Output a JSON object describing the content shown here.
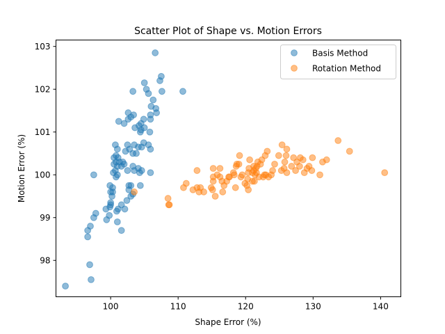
{
  "chart_data": {
    "type": "scatter",
    "title": "Scatter Plot of Shape vs. Motion Errors",
    "xlabel": "Shape Error (%)",
    "ylabel": "Motion Error (%)",
    "xlim": [
      91.9,
      143.0
    ],
    "ylim": [
      97.15,
      103.15
    ],
    "xticks": [
      100,
      110,
      120,
      130,
      140
    ],
    "yticks": [
      98,
      99,
      100,
      101,
      102,
      103
    ],
    "grid": false,
    "legend_position": "top-right",
    "series": [
      {
        "name": "Basis Method",
        "color": "#1f77b4",
        "points": [
          [
            93.3,
            97.4
          ],
          [
            97.1,
            97.55
          ],
          [
            96.9,
            97.9
          ],
          [
            96.6,
            98.55
          ],
          [
            96.6,
            98.7
          ],
          [
            97.0,
            98.8
          ],
          [
            97.5,
            99.0
          ],
          [
            97.8,
            99.1
          ],
          [
            99.4,
            98.95
          ],
          [
            99.3,
            99.2
          ],
          [
            99.9,
            99.25
          ],
          [
            100.0,
            99.3
          ],
          [
            99.8,
            99.05
          ],
          [
            101.6,
            98.7
          ],
          [
            101.0,
            98.9
          ],
          [
            100.9,
            99.15
          ],
          [
            101.1,
            99.2
          ],
          [
            101.6,
            99.3
          ],
          [
            102.1,
            99.2
          ],
          [
            102.4,
            99.4
          ],
          [
            103.0,
            99.5
          ],
          [
            103.3,
            99.55
          ],
          [
            102.7,
            99.65
          ],
          [
            102.7,
            99.75
          ],
          [
            103.0,
            99.75
          ],
          [
            104.4,
            99.75
          ],
          [
            100.3,
            99.6
          ],
          [
            100.3,
            99.7
          ],
          [
            99.9,
            99.75
          ],
          [
            100.0,
            99.6
          ],
          [
            100.0,
            99.35
          ],
          [
            100.2,
            99.5
          ],
          [
            97.5,
            100.0
          ],
          [
            100.8,
            99.95
          ],
          [
            101.0,
            100.0
          ],
          [
            100.4,
            100.05
          ],
          [
            100.7,
            100.1
          ],
          [
            101.0,
            100.2
          ],
          [
            100.5,
            100.25
          ],
          [
            100.8,
            100.3
          ],
          [
            101.6,
            100.2
          ],
          [
            101.3,
            100.3
          ],
          [
            101.8,
            100.3
          ],
          [
            102.0,
            100.25
          ],
          [
            102.5,
            100.1
          ],
          [
            103.5,
            100.1
          ],
          [
            103.3,
            100.2
          ],
          [
            104.1,
            100.15
          ],
          [
            104.3,
            100.05
          ],
          [
            104.6,
            100.1
          ],
          [
            105.9,
            100.05
          ],
          [
            100.5,
            100.4
          ],
          [
            100.8,
            100.45
          ],
          [
            101.1,
            100.4
          ],
          [
            102.2,
            100.55
          ],
          [
            102.8,
            100.6
          ],
          [
            103.3,
            100.5
          ],
          [
            103.8,
            100.5
          ],
          [
            104.1,
            100.65
          ],
          [
            104.6,
            100.65
          ],
          [
            100.7,
            100.7
          ],
          [
            101.0,
            100.6
          ],
          [
            102.5,
            100.7
          ],
          [
            103.5,
            100.7
          ],
          [
            104.9,
            100.75
          ],
          [
            105.6,
            100.7
          ],
          [
            105.9,
            100.6
          ],
          [
            102.0,
            101.2
          ],
          [
            101.2,
            101.25
          ],
          [
            102.6,
            101.3
          ],
          [
            103.0,
            101.35
          ],
          [
            103.6,
            101.1
          ],
          [
            104.2,
            101.15
          ],
          [
            104.5,
            101.2
          ],
          [
            104.4,
            101.0
          ],
          [
            104.5,
            101.05
          ],
          [
            105.0,
            101.1
          ],
          [
            105.8,
            101.0
          ],
          [
            102.6,
            101.45
          ],
          [
            103.4,
            101.4
          ],
          [
            104.9,
            101.3
          ],
          [
            105.9,
            101.3
          ],
          [
            105.9,
            101.4
          ],
          [
            106.0,
            101.6
          ],
          [
            106.7,
            101.55
          ],
          [
            106.8,
            101.45
          ],
          [
            103.3,
            101.95
          ],
          [
            105.0,
            102.15
          ],
          [
            105.3,
            102.0
          ],
          [
            105.6,
            101.9
          ],
          [
            106.3,
            101.75
          ],
          [
            107.6,
            101.95
          ],
          [
            107.3,
            102.2
          ],
          [
            107.5,
            102.3
          ],
          [
            110.7,
            101.95
          ],
          [
            106.6,
            102.85
          ]
        ]
      },
      {
        "name": "Rotation Method",
        "color": "#ff7f0e",
        "points": [
          [
            103.5,
            99.6
          ],
          [
            108.5,
            99.45
          ],
          [
            108.6,
            99.3
          ],
          [
            108.7,
            99.3
          ],
          [
            110.8,
            99.7
          ],
          [
            111.2,
            99.8
          ],
          [
            112.2,
            99.65
          ],
          [
            112.8,
            99.7
          ],
          [
            113.1,
            99.6
          ],
          [
            113.3,
            99.7
          ],
          [
            113.8,
            99.6
          ],
          [
            112.8,
            100.1
          ],
          [
            114.9,
            99.7
          ],
          [
            115.1,
            99.65
          ],
          [
            115.2,
            99.85
          ],
          [
            115.5,
            99.5
          ],
          [
            115.2,
            99.95
          ],
          [
            115.2,
            100.15
          ],
          [
            115.8,
            100.0
          ],
          [
            116.2,
            99.95
          ],
          [
            116.2,
            100.15
          ],
          [
            116.5,
            99.85
          ],
          [
            116.6,
            99.6
          ],
          [
            116.8,
            99.75
          ],
          [
            117.2,
            99.85
          ],
          [
            117.5,
            99.95
          ],
          [
            117.6,
            99.95
          ],
          [
            118.2,
            100.05
          ],
          [
            118.3,
            100.0
          ],
          [
            118.5,
            99.7
          ],
          [
            118.6,
            100.2
          ],
          [
            118.7,
            100.25
          ],
          [
            119.0,
            100.25
          ],
          [
            119.1,
            100.45
          ],
          [
            119.3,
            99.95
          ],
          [
            119.5,
            100.0
          ],
          [
            119.9,
            99.8
          ],
          [
            120.2,
            99.75
          ],
          [
            120.3,
            99.9
          ],
          [
            120.4,
            99.65
          ],
          [
            120.4,
            100.05
          ],
          [
            120.5,
            100.15
          ],
          [
            120.6,
            100.35
          ],
          [
            121.0,
            99.85
          ],
          [
            121.0,
            100.05
          ],
          [
            121.2,
            100.1
          ],
          [
            121.2,
            100.2
          ],
          [
            121.3,
            99.85
          ],
          [
            121.4,
            100.0
          ],
          [
            121.5,
            100.15
          ],
          [
            121.6,
            100.05
          ],
          [
            121.7,
            100.2
          ],
          [
            121.8,
            100.3
          ],
          [
            122.0,
            99.95
          ],
          [
            122.2,
            100.25
          ],
          [
            122.4,
            100.35
          ],
          [
            122.6,
            99.95
          ],
          [
            122.8,
            100.0
          ],
          [
            122.9,
            100.45
          ],
          [
            123.0,
            100.0
          ],
          [
            123.2,
            100.55
          ],
          [
            123.4,
            99.95
          ],
          [
            123.8,
            100.0
          ],
          [
            124.0,
            100.1
          ],
          [
            124.3,
            100.25
          ],
          [
            124.9,
            100.45
          ],
          [
            125.3,
            100.1
          ],
          [
            125.4,
            100.7
          ],
          [
            125.7,
            100.15
          ],
          [
            125.8,
            100.3
          ],
          [
            126.0,
            100.45
          ],
          [
            126.1,
            100.6
          ],
          [
            126.1,
            100.05
          ],
          [
            126.8,
            100.2
          ],
          [
            127.1,
            100.4
          ],
          [
            127.4,
            100.1
          ],
          [
            127.6,
            100.3
          ],
          [
            128.0,
            100.2
          ],
          [
            128.1,
            100.4
          ],
          [
            128.5,
            100.35
          ],
          [
            128.7,
            100.05
          ],
          [
            129.1,
            100.15
          ],
          [
            129.4,
            100.2
          ],
          [
            129.8,
            100.1
          ],
          [
            129.9,
            100.4
          ],
          [
            131.0,
            100.0
          ],
          [
            131.4,
            100.3
          ],
          [
            132.0,
            100.35
          ],
          [
            133.7,
            100.8
          ],
          [
            135.4,
            100.55
          ],
          [
            140.6,
            100.05
          ]
        ]
      }
    ]
  }
}
